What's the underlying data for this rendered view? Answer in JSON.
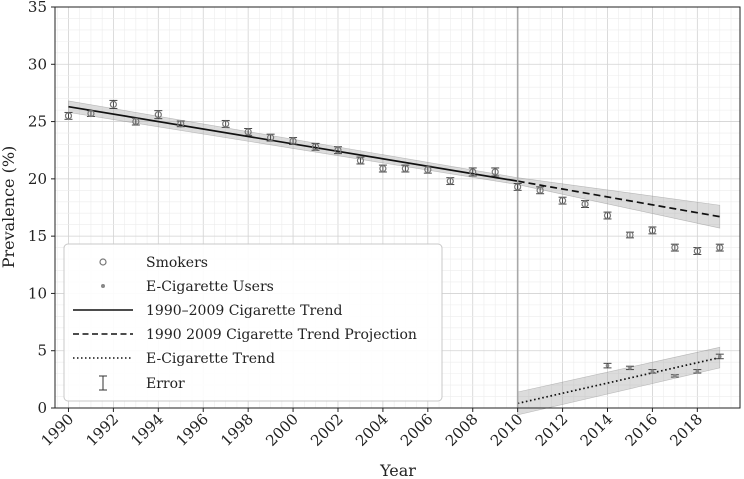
{
  "chart_data": {
    "type": "scatter",
    "xlabel": "Year",
    "ylabel": "Prevalence (%)",
    "xlim": [
      1989.4,
      2019.9
    ],
    "ylim": [
      0,
      35
    ],
    "x_ticks": [
      1990,
      1992,
      1994,
      1996,
      1998,
      2000,
      2002,
      2004,
      2006,
      2008,
      2010,
      2012,
      2014,
      2016,
      2018
    ],
    "y_ticks": [
      0,
      5,
      10,
      15,
      20,
      25,
      30,
      35
    ],
    "grid": true,
    "vertical_reference_line": 2010,
    "legend_position": "lower-left",
    "legend": [
      {
        "label": "Smokers",
        "marker": "open-circle"
      },
      {
        "label": "E-Cigarette Users",
        "marker": "dot"
      },
      {
        "label": "1990–2009 Cigarette Trend",
        "line": "solid"
      },
      {
        "label": "1990 2009 Cigarette Trend Projection",
        "line": "dashed"
      },
      {
        "label": "E-Cigarette Trend",
        "line": "dotted"
      },
      {
        "label": "Error",
        "marker": "errorbar"
      }
    ],
    "series": [
      {
        "name": "Smokers",
        "points": [
          {
            "x": 1990,
            "y": 25.5,
            "err": 0.3
          },
          {
            "x": 1991,
            "y": 25.7,
            "err": 0.25
          },
          {
            "x": 1992,
            "y": 26.5,
            "err": 0.35
          },
          {
            "x": 1993,
            "y": 25.0,
            "err": 0.3
          },
          {
            "x": 1994,
            "y": 25.6,
            "err": 0.35
          },
          {
            "x": 1995,
            "y": 24.8,
            "err": 0.25
          },
          {
            "x": 1997,
            "y": 24.8,
            "err": 0.3
          },
          {
            "x": 1998,
            "y": 24.1,
            "err": 0.3
          },
          {
            "x": 1999,
            "y": 23.6,
            "err": 0.3
          },
          {
            "x": 2000,
            "y": 23.3,
            "err": 0.3
          },
          {
            "x": 2001,
            "y": 22.8,
            "err": 0.3
          },
          {
            "x": 2002,
            "y": 22.5,
            "err": 0.3
          },
          {
            "x": 2003,
            "y": 21.6,
            "err": 0.3
          },
          {
            "x": 2004,
            "y": 20.9,
            "err": 0.3
          },
          {
            "x": 2005,
            "y": 20.9,
            "err": 0.3
          },
          {
            "x": 2006,
            "y": 20.8,
            "err": 0.3
          },
          {
            "x": 2007,
            "y": 19.8,
            "err": 0.3
          },
          {
            "x": 2008,
            "y": 20.6,
            "err": 0.35
          },
          {
            "x": 2009,
            "y": 20.6,
            "err": 0.35
          },
          {
            "x": 2010,
            "y": 19.3,
            "err": 0.3
          },
          {
            "x": 2011,
            "y": 19.0,
            "err": 0.3
          },
          {
            "x": 2012,
            "y": 18.1,
            "err": 0.3
          },
          {
            "x": 2013,
            "y": 17.8,
            "err": 0.3
          },
          {
            "x": 2014,
            "y": 16.8,
            "err": 0.3
          },
          {
            "x": 2015,
            "y": 15.1,
            "err": 0.25
          },
          {
            "x": 2016,
            "y": 15.5,
            "err": 0.3
          },
          {
            "x": 2017,
            "y": 14.0,
            "err": 0.3
          },
          {
            "x": 2018,
            "y": 13.7,
            "err": 0.3
          },
          {
            "x": 2019,
            "y": 14.0,
            "err": 0.3
          }
        ]
      },
      {
        "name": "E-Cigarette Users",
        "points": [
          {
            "x": 2014,
            "y": 3.7,
            "err": 0.2
          },
          {
            "x": 2015,
            "y": 3.5,
            "err": 0.15
          },
          {
            "x": 2016,
            "y": 3.2,
            "err": 0.15
          },
          {
            "x": 2017,
            "y": 2.8,
            "err": 0.1
          },
          {
            "x": 2018,
            "y": 3.2,
            "err": 0.15
          },
          {
            "x": 2019,
            "y": 4.5,
            "err": 0.2
          }
        ]
      }
    ],
    "trend_lines": [
      {
        "name": "1990–2009 Cigarette Trend",
        "style": "solid",
        "x": [
          1990,
          2010
        ],
        "y": [
          26.3,
          19.8
        ],
        "band": [
          0.5,
          0.3
        ]
      },
      {
        "name": "1990 2009 Cigarette Trend Projection",
        "style": "dashed",
        "x": [
          2010,
          2019
        ],
        "y": [
          19.8,
          16.7
        ],
        "band": [
          0.3,
          1.0
        ]
      },
      {
        "name": "E-Cigarette Trend",
        "style": "dotted",
        "x": [
          2010,
          2019
        ],
        "y": [
          0.4,
          4.4
        ],
        "band": [
          1.0,
          0.9
        ]
      }
    ]
  }
}
